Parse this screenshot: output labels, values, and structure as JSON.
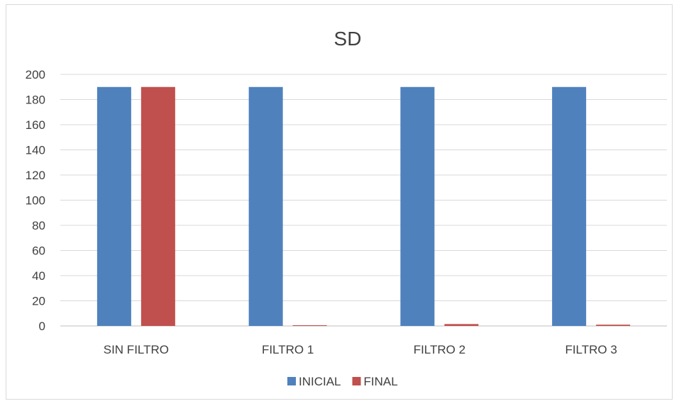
{
  "chart_data": {
    "type": "bar",
    "title": "SD",
    "categories": [
      "SIN FILTRO",
      "FILTRO 1",
      "FILTRO 2",
      "FILTRO 3"
    ],
    "series": [
      {
        "name": "INICIAL",
        "values": [
          190,
          190,
          190,
          190
        ],
        "color": "#4f81bd"
      },
      {
        "name": "FINAL",
        "values": [
          190,
          0.5,
          1.5,
          1
        ],
        "color": "#c0504d"
      }
    ],
    "ylim": [
      0,
      200
    ],
    "yticks": [
      0,
      20,
      40,
      60,
      80,
      100,
      120,
      140,
      160,
      180,
      200
    ],
    "grid": true,
    "legend": "bottom",
    "gridColor": "#d9d9d9",
    "axisColor": "#bfbfbf"
  }
}
